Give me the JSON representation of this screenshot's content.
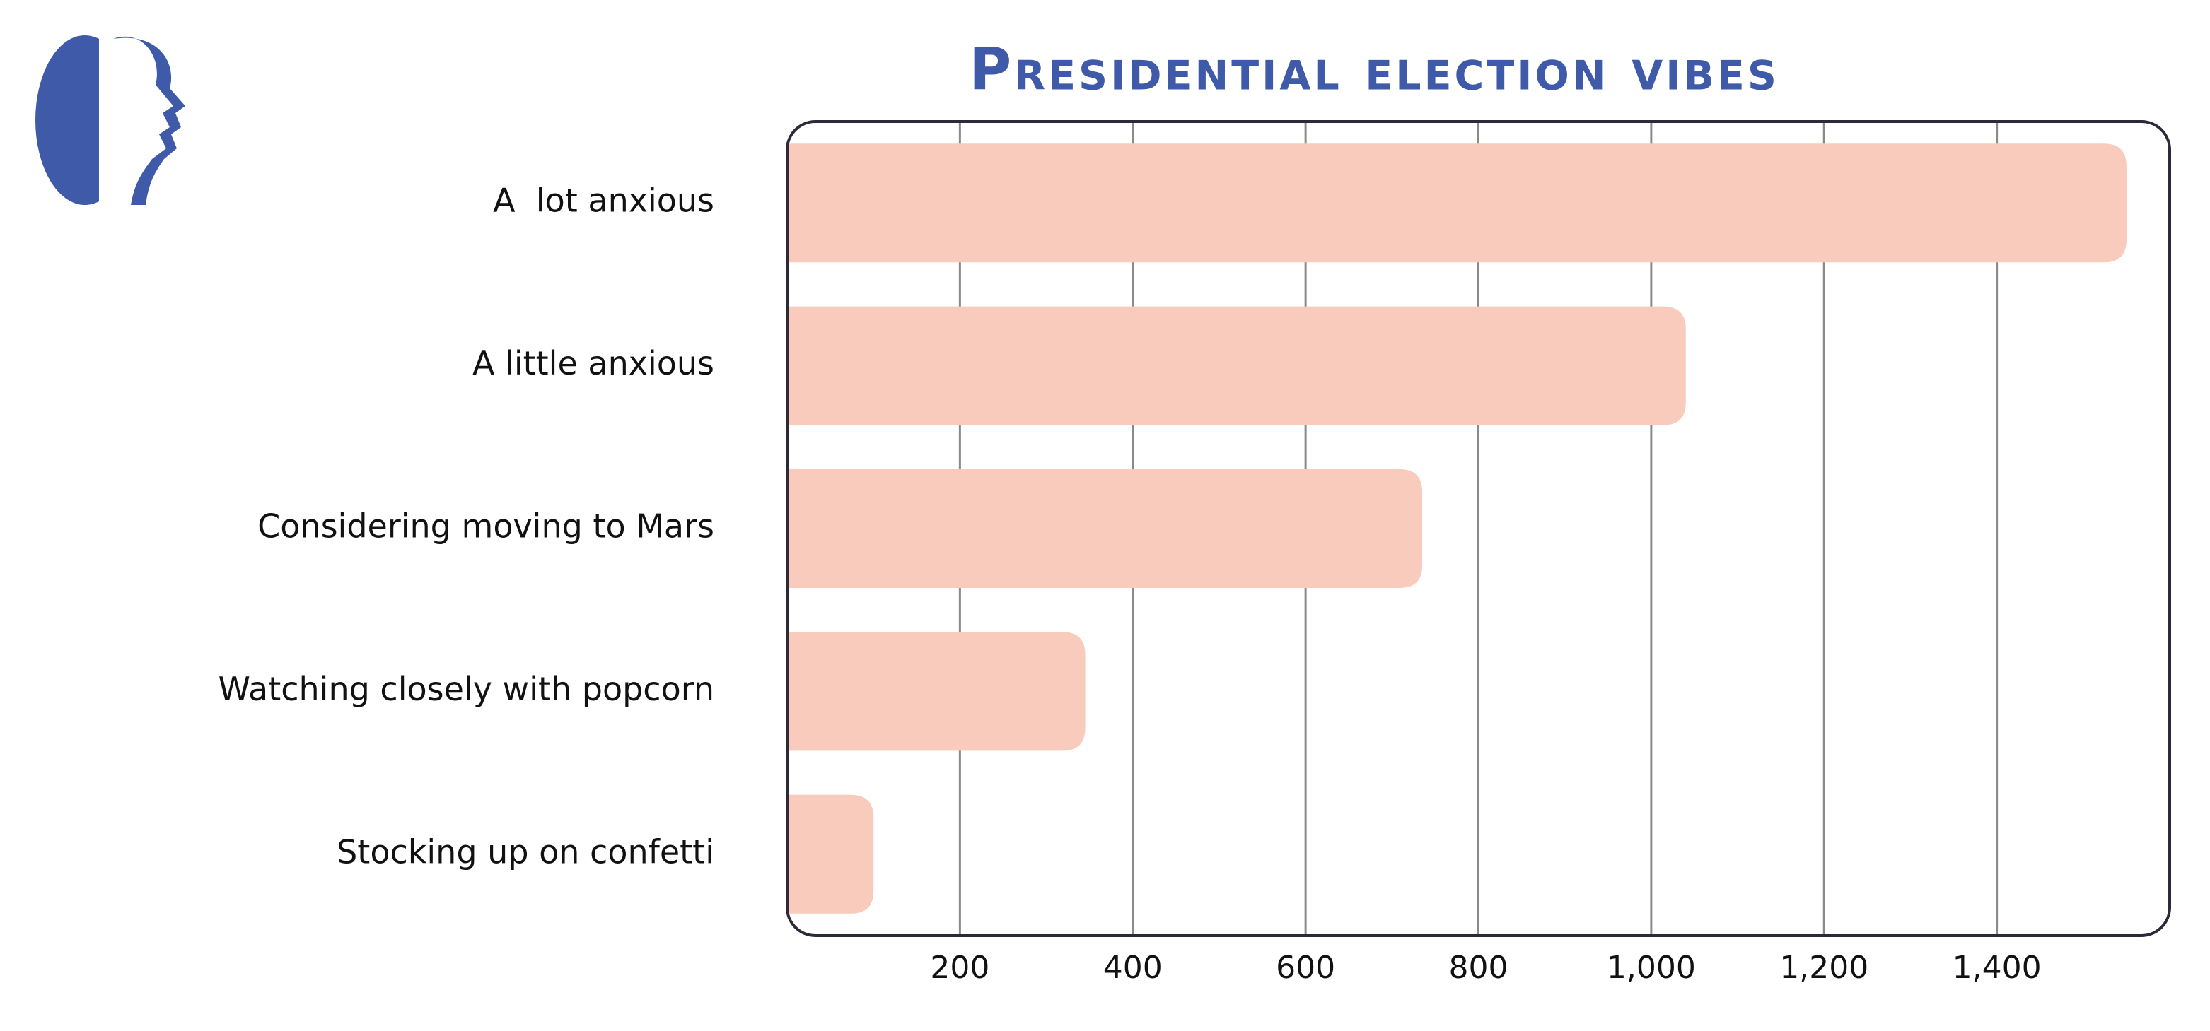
{
  "chart_data": {
    "type": "bar",
    "orientation": "horizontal",
    "title": "Presidential election vibes",
    "categories": [
      "A  lot anxious",
      "A little anxious",
      "Considering moving to Mars",
      "Watching closely with popcorn",
      "Stocking up on confetti"
    ],
    "values": [
      1550,
      1040,
      735,
      345,
      100
    ],
    "color": "#f9cbbd",
    "xlim": [
      0,
      1600
    ],
    "xticks": [
      200,
      400,
      600,
      800,
      {
        "value": 1000,
        "label": "1,000"
      },
      {
        "value": 1200,
        "label": "1,200"
      },
      {
        "value": 1400,
        "label": "1,400"
      }
    ],
    "grid": true
  }
}
